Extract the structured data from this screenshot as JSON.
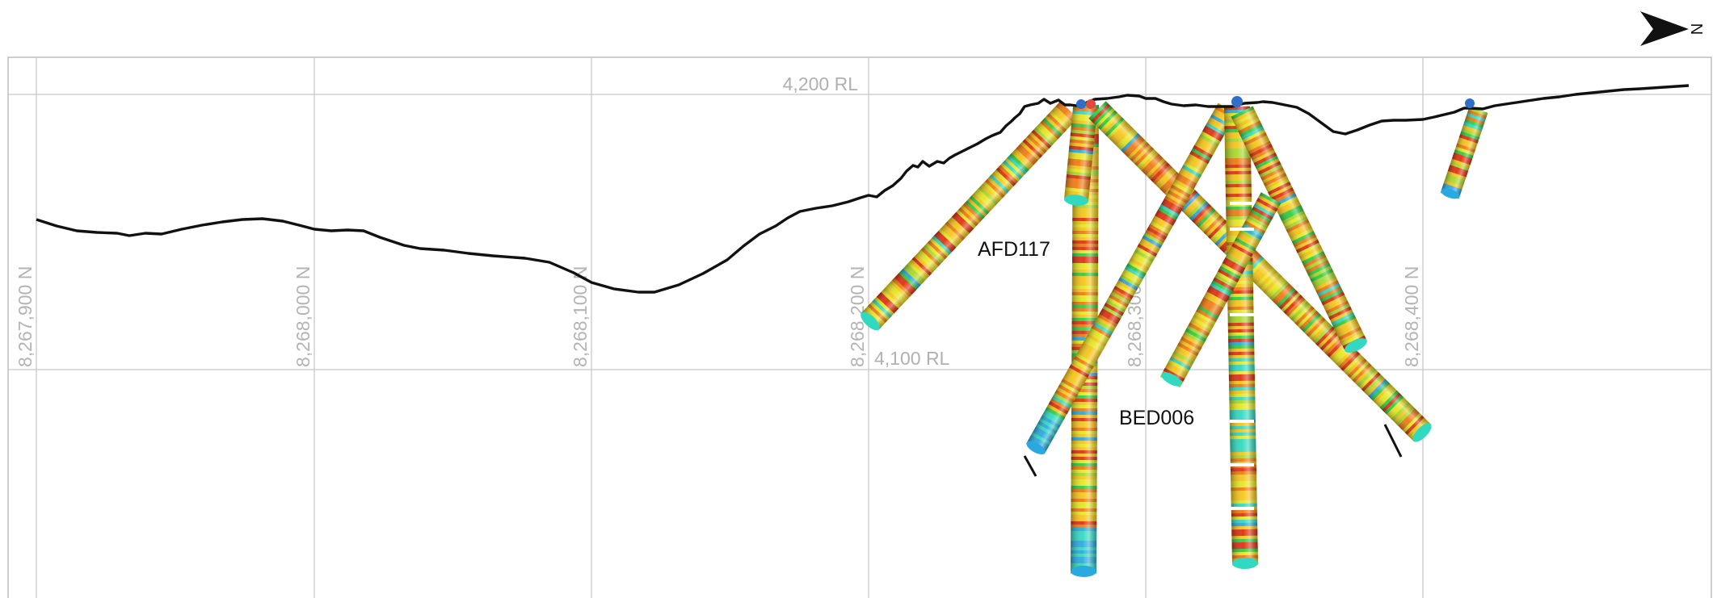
{
  "section": {
    "rl_labels": [
      "4,200 RL",
      "4,100 RL"
    ],
    "northing_labels": [
      "8,267,900 N",
      "8,268,000 N",
      "8,268,100 N",
      "8,268,200 N",
      "8,268,300 N",
      "8,268,400 N"
    ],
    "north_arrow_label": "N",
    "hole_labels": [
      "AFD117",
      "BED006"
    ]
  },
  "colors": {
    "background": "#ffffff",
    "grid": "#c8c8c8",
    "topography": "#111111",
    "assay_palette": [
      "#e03010",
      "#f07a10",
      "#f5c518",
      "#e6e620",
      "#a8d82a",
      "#2ecc40",
      "#30d9c0",
      "#2aa8e0"
    ],
    "collar_marker": "#2f6fc9",
    "collar_marker_alt": "#e04a3c"
  }
}
